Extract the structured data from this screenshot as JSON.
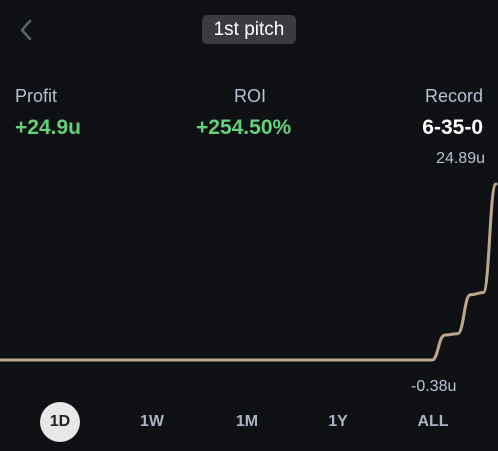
{
  "header": {
    "back_icon": "chevron-left-icon",
    "title": "1st pitch"
  },
  "stats": {
    "profit": {
      "label": "Profit",
      "value": "+24.9u",
      "color": "#63d07a"
    },
    "roi": {
      "label": "ROI",
      "value": "+254.50%",
      "color": "#63d07a"
    },
    "record": {
      "label": "Record",
      "value": "6-35-0",
      "color": "#ffffff"
    }
  },
  "chart": {
    "max_label": "24.89u",
    "min_label": "-0.38u",
    "line_color": "#b9a88a"
  },
  "chart_data": {
    "type": "line",
    "ylim": [
      -0.38,
      24.89
    ],
    "y": [
      -0.38,
      -0.38,
      -0.38,
      -0.38,
      -0.38,
      -0.38,
      -0.38,
      -0.38,
      -0.38,
      -0.38,
      -0.38,
      -0.38,
      -0.38,
      -0.38,
      -0.38,
      -0.38,
      -0.38,
      -0.38,
      -0.38,
      -0.38,
      3.2,
      3.4,
      9.0,
      9.3,
      24.89
    ]
  },
  "ranges": {
    "items": [
      {
        "label": "1D",
        "active": true
      },
      {
        "label": "1W",
        "active": false
      },
      {
        "label": "1M",
        "active": false
      },
      {
        "label": "1Y",
        "active": false
      },
      {
        "label": "ALL",
        "active": false
      }
    ]
  }
}
